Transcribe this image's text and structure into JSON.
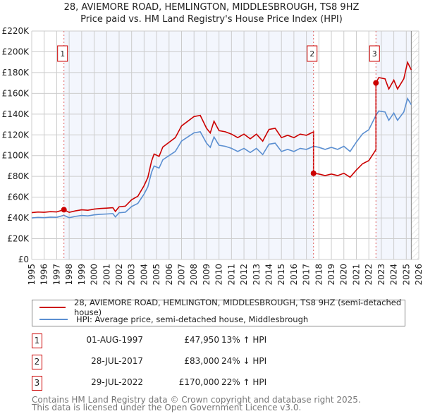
{
  "title": "28, AVIEMORE ROAD, HEMLINGTON, MIDDLESBROUGH, TS8 9HZ",
  "subtitle": "Price paid vs. HM Land Registry's House Price Index (HPI)",
  "chart_data": {
    "type": "line",
    "title": "28, AVIEMORE ROAD, HEMLINGTON, MIDDLESBROUGH, TS8 9HZ",
    "xlim": [
      1995,
      2026
    ],
    "ylim": [
      0,
      220000
    ],
    "x_ticks": [
      "1995",
      "1996",
      "1997",
      "1998",
      "1999",
      "2000",
      "2001",
      "2002",
      "2003",
      "2004",
      "2005",
      "2006",
      "2007",
      "2008",
      "2009",
      "2010",
      "2011",
      "2012",
      "2013",
      "2014",
      "2015",
      "2016",
      "2017",
      "2018",
      "2019",
      "2020",
      "2021",
      "2022",
      "2023",
      "2024",
      "2025",
      "2026"
    ],
    "y_ticks": [
      {
        "v": 0,
        "label": "£0"
      },
      {
        "v": 20000,
        "label": "£20K"
      },
      {
        "v": 40000,
        "label": "£40K"
      },
      {
        "v": 60000,
        "label": "£60K"
      },
      {
        "v": 80000,
        "label": "£80K"
      },
      {
        "v": 100000,
        "label": "£100K"
      },
      {
        "v": 120000,
        "label": "£120K"
      },
      {
        "v": 140000,
        "label": "£140K"
      },
      {
        "v": 160000,
        "label": "£160K"
      },
      {
        "v": 180000,
        "label": "£180K"
      },
      {
        "v": 200000,
        "label": "£200K"
      },
      {
        "v": 220000,
        "label": "£220K"
      }
    ],
    "grid": true,
    "forecast_from": 2025.4,
    "hpi_series": {
      "name": "HPI: Average price, semi-detached house, Middlesbrough",
      "color": "#5b8fd1",
      "x": [
        1995,
        1995.5,
        1996,
        1996.5,
        1997,
        1997.58,
        1998,
        1998.5,
        1999,
        1999.5,
        2000,
        2000.5,
        2001,
        2001.5,
        2001.7,
        2002,
        2002.5,
        2003,
        2003.5,
        2004,
        2004.3,
        2004.6,
        2004.8,
        2005.2,
        2005.5,
        2006,
        2006.5,
        2007,
        2007.5,
        2008,
        2008.5,
        2009,
        2009.3,
        2009.6,
        2010,
        2010.5,
        2011,
        2011.5,
        2012,
        2012.5,
        2013,
        2013.5,
        2014,
        2014.5,
        2015,
        2015.5,
        2016,
        2016.5,
        2017,
        2017.58,
        2018,
        2018.5,
        2019,
        2019.5,
        2020,
        2020.5,
        2021,
        2021.5,
        2022,
        2022.58,
        2022.8,
        2023.3,
        2023.6,
        2024,
        2024.3,
        2024.8,
        2025.1,
        2025.4
      ],
      "y": [
        40000,
        40500,
        40300,
        40800,
        40600,
        42500,
        40200,
        41500,
        42400,
        42000,
        43000,
        43500,
        43800,
        44200,
        41000,
        45000,
        45500,
        51000,
        54000,
        63000,
        70000,
        84000,
        90000,
        88000,
        96000,
        100000,
        104000,
        114000,
        118000,
        122000,
        123000,
        112000,
        108000,
        118000,
        110000,
        109000,
        107000,
        104000,
        107000,
        103000,
        107000,
        101000,
        111000,
        112000,
        104000,
        106000,
        104000,
        107000,
        106000,
        109000,
        108000,
        106000,
        108000,
        106000,
        109000,
        104000,
        113000,
        121000,
        125000,
        139000,
        143000,
        142000,
        134000,
        141000,
        134000,
        142000,
        155000,
        149000
      ]
    },
    "price_series": {
      "name": "28, AVIEMORE ROAD, HEMLINGTON, MIDDLESBROUGH, TS8 9HZ (semi-detached house)",
      "color": "#cc0000"
    },
    "sales": [
      {
        "id": "1",
        "year": 1997.58,
        "date": "01-AUG-1997",
        "price": 47950,
        "price_label": "£47,950",
        "hpi_label": "13% ↑ HPI"
      },
      {
        "id": "2",
        "year": 2017.57,
        "date": "28-JUL-2017",
        "price": 83000,
        "price_label": "£83,000",
        "hpi_label": "24% ↓ HPI"
      },
      {
        "id": "3",
        "year": 2022.57,
        "date": "29-JUL-2022",
        "price": 170000,
        "price_label": "£170,000",
        "hpi_label": "22% ↑ HPI"
      }
    ]
  },
  "legend": {
    "price": "28, AVIEMORE ROAD, HEMLINGTON, MIDDLESBROUGH, TS8 9HZ (semi-detached house)",
    "hpi": "HPI: Average price, semi-detached house, Middlesbrough"
  },
  "footer": {
    "line1": "Contains HM Land Registry data © Crown copyright and database right 2025.",
    "line2": "This data is licensed under the Open Government Licence v3.0."
  }
}
